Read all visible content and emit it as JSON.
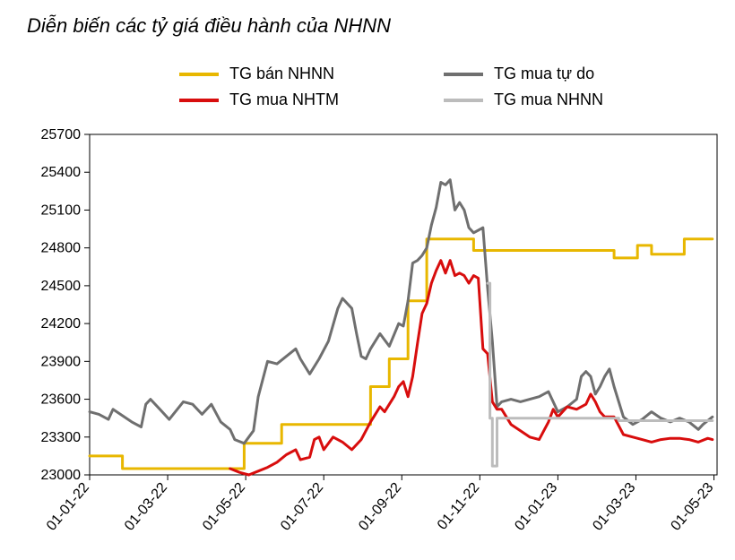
{
  "chart": {
    "type": "line",
    "title": "Diễn biến các tỷ giá điều hành của NHNN",
    "title_fontsize": 22,
    "title_fontstyle": "italic",
    "background_color": "#ffffff",
    "axis_box_color": "#000000",
    "axis_box_width": 1,
    "ylim": [
      23000,
      25700
    ],
    "ytick_step": 300,
    "yticks": [
      23000,
      23300,
      23600,
      23900,
      24200,
      24500,
      24800,
      25100,
      25400,
      25700
    ],
    "xticks": [
      "01-01-22",
      "01-03-22",
      "01-05-22",
      "01-07-22",
      "01-09-22",
      "01-11-22",
      "01-01-23",
      "01-03-23",
      "01-05-23"
    ],
    "xtick_rotation_deg": -50,
    "tick_fontsize": 16,
    "line_width": 3,
    "legend": {
      "fontsize": 18,
      "swatch_width": 44,
      "swatch_height": 4,
      "items": [
        {
          "label": "TG bán NHNN",
          "color": "#e8b700"
        },
        {
          "label": "TG mua tự do",
          "color": "#6f6f6f"
        },
        {
          "label": "TG mua NHTM",
          "color": "#d80d0d"
        },
        {
          "label": "TG mua NHNN",
          "color": "#bcbcbc"
        }
      ]
    },
    "series": [
      {
        "name": "TG bán NHNN",
        "color": "#e8b700",
        "type": "step",
        "data": [
          [
            0.0,
            23150
          ],
          [
            0.07,
            23150
          ],
          [
            0.07,
            23050
          ],
          [
            0.33,
            23050
          ],
          [
            0.33,
            23250
          ],
          [
            0.41,
            23250
          ],
          [
            0.41,
            23400
          ],
          [
            0.6,
            23400
          ],
          [
            0.6,
            23700
          ],
          [
            0.64,
            23700
          ],
          [
            0.64,
            23920
          ],
          [
            0.68,
            23920
          ],
          [
            0.68,
            24380
          ],
          [
            0.72,
            24380
          ],
          [
            0.72,
            24870
          ],
          [
            0.82,
            24870
          ],
          [
            0.82,
            24780
          ],
          [
            1.12,
            24780
          ],
          [
            1.12,
            24720
          ],
          [
            1.17,
            24720
          ],
          [
            1.17,
            24820
          ],
          [
            1.2,
            24820
          ],
          [
            1.2,
            24750
          ],
          [
            1.27,
            24750
          ],
          [
            1.27,
            24870
          ],
          [
            1.33,
            24870
          ]
        ]
      },
      {
        "name": "TG mua tự do",
        "color": "#6f6f6f",
        "type": "line",
        "data": [
          [
            0.0,
            23500
          ],
          [
            0.02,
            23480
          ],
          [
            0.04,
            23440
          ],
          [
            0.05,
            23520
          ],
          [
            0.07,
            23470
          ],
          [
            0.09,
            23420
          ],
          [
            0.11,
            23380
          ],
          [
            0.12,
            23560
          ],
          [
            0.13,
            23600
          ],
          [
            0.15,
            23520
          ],
          [
            0.17,
            23440
          ],
          [
            0.2,
            23580
          ],
          [
            0.22,
            23560
          ],
          [
            0.24,
            23480
          ],
          [
            0.26,
            23560
          ],
          [
            0.28,
            23420
          ],
          [
            0.3,
            23360
          ],
          [
            0.31,
            23280
          ],
          [
            0.33,
            23250
          ],
          [
            0.35,
            23350
          ],
          [
            0.36,
            23620
          ],
          [
            0.38,
            23900
          ],
          [
            0.4,
            23880
          ],
          [
            0.42,
            23940
          ],
          [
            0.44,
            24000
          ],
          [
            0.45,
            23920
          ],
          [
            0.47,
            23800
          ],
          [
            0.49,
            23920
          ],
          [
            0.51,
            24060
          ],
          [
            0.53,
            24320
          ],
          [
            0.54,
            24400
          ],
          [
            0.56,
            24320
          ],
          [
            0.57,
            24120
          ],
          [
            0.58,
            23940
          ],
          [
            0.59,
            23920
          ],
          [
            0.6,
            24000
          ],
          [
            0.62,
            24120
          ],
          [
            0.64,
            24020
          ],
          [
            0.66,
            24200
          ],
          [
            0.67,
            24180
          ],
          [
            0.68,
            24380
          ],
          [
            0.69,
            24680
          ],
          [
            0.7,
            24700
          ],
          [
            0.71,
            24740
          ],
          [
            0.72,
            24800
          ],
          [
            0.73,
            24980
          ],
          [
            0.74,
            25120
          ],
          [
            0.75,
            25320
          ],
          [
            0.76,
            25300
          ],
          [
            0.77,
            25340
          ],
          [
            0.78,
            25100
          ],
          [
            0.79,
            25160
          ],
          [
            0.8,
            25100
          ],
          [
            0.81,
            24960
          ],
          [
            0.82,
            24920
          ],
          [
            0.83,
            24940
          ],
          [
            0.84,
            24960
          ],
          [
            0.85,
            24480
          ],
          [
            0.86,
            24060
          ],
          [
            0.87,
            23540
          ],
          [
            0.88,
            23580
          ],
          [
            0.9,
            23600
          ],
          [
            0.92,
            23580
          ],
          [
            0.94,
            23600
          ],
          [
            0.96,
            23620
          ],
          [
            0.98,
            23660
          ],
          [
            1.0,
            23500
          ],
          [
            1.02,
            23540
          ],
          [
            1.04,
            23600
          ],
          [
            1.05,
            23780
          ],
          [
            1.06,
            23820
          ],
          [
            1.07,
            23780
          ],
          [
            1.08,
            23640
          ],
          [
            1.09,
            23700
          ],
          [
            1.1,
            23780
          ],
          [
            1.11,
            23840
          ],
          [
            1.12,
            23700
          ],
          [
            1.14,
            23460
          ],
          [
            1.16,
            23400
          ],
          [
            1.18,
            23440
          ],
          [
            1.2,
            23500
          ],
          [
            1.22,
            23450
          ],
          [
            1.24,
            23420
          ],
          [
            1.26,
            23450
          ],
          [
            1.28,
            23420
          ],
          [
            1.3,
            23360
          ],
          [
            1.31,
            23400
          ],
          [
            1.33,
            23460
          ]
        ]
      },
      {
        "name": "TG mua NHTM",
        "color": "#d80d0d",
        "type": "line",
        "data": [
          [
            0.3,
            23050
          ],
          [
            0.32,
            23020
          ],
          [
            0.34,
            23000
          ],
          [
            0.36,
            23030
          ],
          [
            0.38,
            23060
          ],
          [
            0.4,
            23100
          ],
          [
            0.42,
            23160
          ],
          [
            0.44,
            23200
          ],
          [
            0.45,
            23120
          ],
          [
            0.47,
            23140
          ],
          [
            0.48,
            23280
          ],
          [
            0.49,
            23300
          ],
          [
            0.5,
            23200
          ],
          [
            0.52,
            23300
          ],
          [
            0.54,
            23260
          ],
          [
            0.56,
            23200
          ],
          [
            0.58,
            23280
          ],
          [
            0.6,
            23420
          ],
          [
            0.61,
            23480
          ],
          [
            0.62,
            23540
          ],
          [
            0.63,
            23500
          ],
          [
            0.64,
            23560
          ],
          [
            0.65,
            23620
          ],
          [
            0.66,
            23700
          ],
          [
            0.67,
            23740
          ],
          [
            0.68,
            23620
          ],
          [
            0.69,
            23780
          ],
          [
            0.7,
            24040
          ],
          [
            0.71,
            24280
          ],
          [
            0.72,
            24360
          ],
          [
            0.73,
            24520
          ],
          [
            0.74,
            24620
          ],
          [
            0.75,
            24700
          ],
          [
            0.76,
            24600
          ],
          [
            0.77,
            24700
          ],
          [
            0.78,
            24580
          ],
          [
            0.79,
            24600
          ],
          [
            0.8,
            24580
          ],
          [
            0.81,
            24520
          ],
          [
            0.82,
            24580
          ],
          [
            0.83,
            24560
          ],
          [
            0.84,
            24000
          ],
          [
            0.85,
            23960
          ],
          [
            0.86,
            23580
          ],
          [
            0.87,
            23520
          ],
          [
            0.88,
            23520
          ],
          [
            0.9,
            23400
          ],
          [
            0.92,
            23350
          ],
          [
            0.94,
            23300
          ],
          [
            0.96,
            23280
          ],
          [
            0.98,
            23420
          ],
          [
            0.99,
            23520
          ],
          [
            1.0,
            23460
          ],
          [
            1.02,
            23540
          ],
          [
            1.04,
            23520
          ],
          [
            1.06,
            23560
          ],
          [
            1.07,
            23640
          ],
          [
            1.08,
            23580
          ],
          [
            1.09,
            23500
          ],
          [
            1.1,
            23460
          ],
          [
            1.11,
            23460
          ],
          [
            1.12,
            23460
          ],
          [
            1.14,
            23320
          ],
          [
            1.16,
            23300
          ],
          [
            1.18,
            23280
          ],
          [
            1.2,
            23260
          ],
          [
            1.22,
            23280
          ],
          [
            1.24,
            23290
          ],
          [
            1.26,
            23290
          ],
          [
            1.28,
            23280
          ],
          [
            1.3,
            23260
          ],
          [
            1.32,
            23290
          ],
          [
            1.33,
            23280
          ]
        ]
      },
      {
        "name": "TG mua NHNN",
        "color": "#bcbcbc",
        "type": "step",
        "data": [
          [
            0.85,
            24520
          ],
          [
            0.855,
            24520
          ],
          [
            0.855,
            23450
          ],
          [
            0.86,
            23450
          ],
          [
            0.86,
            23070
          ],
          [
            0.87,
            23070
          ],
          [
            0.87,
            23450
          ],
          [
            1.13,
            23450
          ],
          [
            1.13,
            23430
          ],
          [
            1.33,
            23430
          ]
        ]
      }
    ]
  }
}
